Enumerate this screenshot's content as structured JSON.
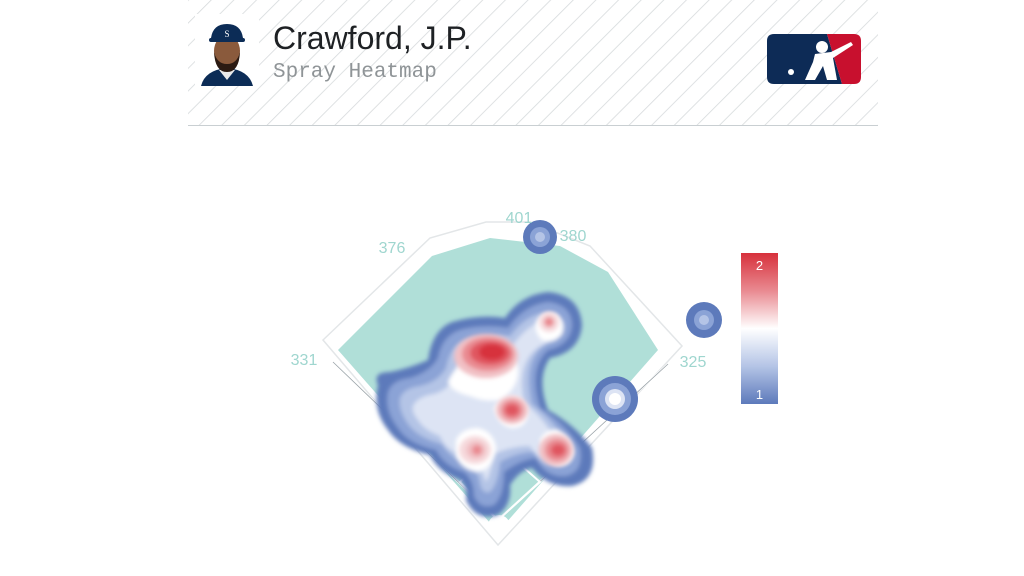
{
  "header": {
    "player_name": "Crawford, J.P.",
    "subtitle": "Spray Heatmap",
    "logo_icon": "mlb-logo-icon",
    "avatar_icon": "player-headshot"
  },
  "chart_data": {
    "type": "heatmap",
    "title": "Spray Heatmap",
    "field_distances": {
      "left_line": "331",
      "left_center": "376",
      "center": "401",
      "right_center": "380",
      "right_line": "325"
    },
    "colorbar": {
      "min_label": "1",
      "max_label": "2",
      "min": 1,
      "max": 2
    },
    "hot_spots": [
      {
        "region": "left-center shallow outfield",
        "level": 2.0
      },
      {
        "region": "right-center outfield",
        "level": 1.7
      },
      {
        "region": "up the middle",
        "level": 1.8
      },
      {
        "region": "right side infield",
        "level": 1.8
      },
      {
        "region": "left side infield",
        "level": 1.6
      },
      {
        "region": "left field",
        "level": 1.0
      },
      {
        "region": "right field line",
        "level": 1.2
      },
      {
        "region": "deep center",
        "level": 1.0
      },
      {
        "region": "deep right",
        "level": 1.0
      }
    ],
    "colors": {
      "high": "#dc2f3a",
      "mid": "#ffffff",
      "low": "#5a74b8",
      "field": "#b0dfd8"
    }
  }
}
